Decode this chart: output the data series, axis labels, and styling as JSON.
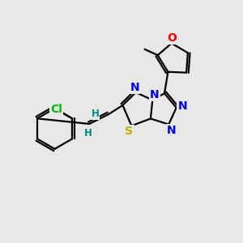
{
  "background_color": "#e8e8e8",
  "atom_colors": {
    "N": "#0000ee",
    "S": "#ccaa00",
    "O": "#ff0000",
    "Cl": "#00bb00",
    "H": "#008888"
  },
  "font_size_atoms": 10,
  "font_size_small": 8.5
}
